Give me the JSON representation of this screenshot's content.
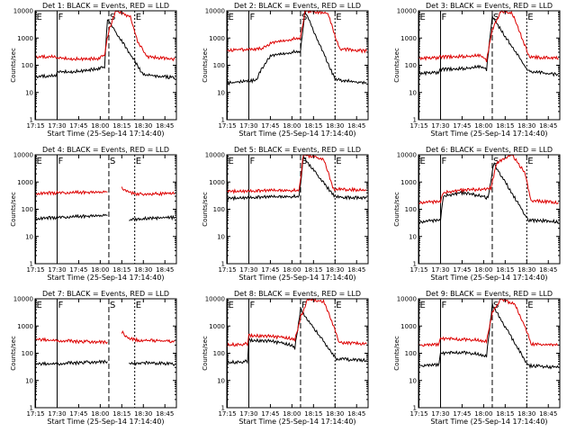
{
  "chart_data": [
    {
      "type": "line",
      "title": "Det 1: BLACK = Events, RED = LLD",
      "xlabel": "Start Time (25-Sep-14 17:14:40)",
      "ylabel": "Counts/sec",
      "yscale": "log",
      "ylim": [
        1,
        10000
      ],
      "xlim": [
        "17:14:40",
        "18:53"
      ],
      "x_ticks": [
        "17:15",
        "17:30",
        "17:45",
        "18:00",
        "18:15",
        "18:30",
        "18:45"
      ],
      "y_ticks": [
        "1",
        "10",
        "100",
        "1000",
        "10000"
      ],
      "markers": [
        {
          "label": "E",
          "x": "17:15"
        },
        {
          "label": "F",
          "x": "17:30"
        },
        {
          "label": "S",
          "x": "18:06"
        },
        {
          "label": "E",
          "x": "18:24"
        }
      ],
      "series": [
        {
          "name": "BLACK = Events",
          "color": "#000000",
          "x": [
            "17:15",
            "17:29",
            "17:30",
            "17:45",
            "17:59",
            "18:03",
            "18:05",
            "18:30",
            "18:52"
          ],
          "y": [
            38,
            42,
            55,
            60,
            75,
            85,
            5000,
            45,
            35
          ]
        },
        {
          "name": "RED = LLD",
          "color": "#dd0000",
          "x": [
            "17:15",
            "17:29",
            "17:30",
            "17:45",
            "17:59",
            "18:03",
            "18:06",
            "18:11",
            "18:21",
            "18:26",
            "18:33",
            "18:52"
          ],
          "y": [
            200,
            210,
            180,
            170,
            175,
            240,
            2000,
            10000,
            6000,
            700,
            200,
            170
          ]
        }
      ]
    },
    {
      "type": "line",
      "title": "Det 2: BLACK = Events, RED = LLD",
      "xlabel": "Start Time (25-Sep-14 17:14:40)",
      "ylabel": "Counts/sec",
      "yscale": "log",
      "ylim": [
        1,
        10000
      ],
      "xlim": [
        "17:14:40",
        "18:53"
      ],
      "x_ticks": [
        "17:15",
        "17:30",
        "17:45",
        "18:00",
        "18:15",
        "18:30",
        "18:45"
      ],
      "y_ticks": [
        "1",
        "10",
        "100",
        "1000",
        "10000"
      ],
      "markers": [
        {
          "label": "E",
          "x": "17:15"
        },
        {
          "label": "F",
          "x": "17:30"
        },
        {
          "label": "S",
          "x": "18:06"
        },
        {
          "label": "E",
          "x": "18:30"
        }
      ],
      "series": [
        {
          "name": "BLACK = Events",
          "color": "#000000",
          "x": [
            "17:15",
            "17:35",
            "17:38",
            "17:45",
            "18:00",
            "18:06",
            "18:09",
            "18:30",
            "18:52"
          ],
          "y": [
            22,
            28,
            60,
            220,
            300,
            320,
            10000,
            30,
            22
          ]
        },
        {
          "name": "RED = LLD",
          "color": "#dd0000",
          "x": [
            "17:15",
            "17:30",
            "17:40",
            "17:45",
            "18:00",
            "18:06",
            "18:09",
            "18:25",
            "18:33",
            "18:52"
          ],
          "y": [
            360,
            380,
            420,
            650,
            900,
            1000,
            10000,
            8000,
            400,
            330
          ]
        }
      ]
    },
    {
      "type": "line",
      "title": "Det 3: BLACK = Events, RED = LLD",
      "xlabel": "Start Time (25-Sep-14 17:14:40)",
      "ylabel": "Counts/sec",
      "yscale": "log",
      "ylim": [
        1,
        10000
      ],
      "xlim": [
        "17:14:40",
        "18:53"
      ],
      "x_ticks": [
        "17:15",
        "17:30",
        "17:45",
        "18:00",
        "18:15",
        "18:30",
        "18:45"
      ],
      "y_ticks": [
        "1",
        "10",
        "100",
        "1000",
        "10000"
      ],
      "markers": [
        {
          "label": "E",
          "x": "17:15"
        },
        {
          "label": "F",
          "x": "17:30"
        },
        {
          "label": "S",
          "x": "18:06"
        },
        {
          "label": "E",
          "x": "18:30"
        }
      ],
      "series": [
        {
          "name": "BLACK = Events",
          "color": "#000000",
          "x": [
            "17:15",
            "17:29",
            "17:30",
            "17:45",
            "17:58",
            "18:02",
            "18:06",
            "18:31",
            "18:52"
          ],
          "y": [
            50,
            55,
            70,
            75,
            90,
            70,
            6000,
            60,
            45
          ]
        },
        {
          "name": "RED = LLD",
          "color": "#dd0000",
          "x": [
            "17:15",
            "17:29",
            "17:30",
            "17:45",
            "17:58",
            "18:02",
            "18:06",
            "18:12",
            "18:20",
            "18:27",
            "18:32",
            "18:52"
          ],
          "y": [
            180,
            190,
            200,
            210,
            230,
            150,
            2000,
            10000,
            8000,
            900,
            200,
            180
          ]
        }
      ]
    },
    {
      "type": "line",
      "title": "Det 4: BLACK = Events, RED = LLD",
      "xlabel": "Start Time (25-Sep-14 17:14:40)",
      "ylabel": "Counts/sec",
      "yscale": "log",
      "ylim": [
        1,
        10000
      ],
      "xlim": [
        "17:14:40",
        "18:53"
      ],
      "x_ticks": [
        "17:15",
        "17:30",
        "17:45",
        "18:00",
        "18:15",
        "18:30",
        "18:45"
      ],
      "y_ticks": [
        "1",
        "10",
        "100",
        "1000",
        "10000"
      ],
      "markers": [
        {
          "label": "E",
          "x": "17:15"
        },
        {
          "label": "F",
          "x": "17:30"
        },
        {
          "label": "S",
          "x": "18:06"
        },
        {
          "label": "E",
          "x": "18:24"
        }
      ],
      "series": [
        {
          "name": "BLACK = Events",
          "color": "#000000",
          "x": [
            "17:15",
            "17:30",
            "17:45",
            "18:05"
          ],
          "y": [
            45,
            50,
            55,
            60
          ]
        },
        {
          "name": "RED = LLD",
          "color": "#dd0000",
          "x": [
            "17:15",
            "17:30",
            "17:45",
            "18:05"
          ],
          "y": [
            380,
            400,
            420,
            430
          ]
        },
        {
          "name": "BLACK = Events",
          "color": "#000000",
          "x": [
            "18:20",
            "18:30",
            "18:52"
          ],
          "y": [
            40,
            45,
            50
          ]
        },
        {
          "name": "RED = LLD",
          "color": "#dd0000",
          "x": [
            "18:15",
            "18:20",
            "18:26",
            "18:52"
          ],
          "y": [
            600,
            420,
            360,
            380
          ]
        }
      ]
    },
    {
      "type": "line",
      "title": "Det 5: BLACK = Events, RED = LLD",
      "xlabel": "Start Time (25-Sep-14 17:14:40)",
      "ylabel": "Counts/sec",
      "yscale": "log",
      "ylim": [
        1,
        10000
      ],
      "xlim": [
        "17:14:40",
        "18:53"
      ],
      "x_ticks": [
        "17:15",
        "17:30",
        "17:45",
        "18:00",
        "18:15",
        "18:30",
        "18:45"
      ],
      "y_ticks": [
        "1",
        "10",
        "100",
        "1000",
        "10000"
      ],
      "markers": [
        {
          "label": "E",
          "x": "17:15"
        },
        {
          "label": "F",
          "x": "17:30"
        },
        {
          "label": "S",
          "x": "18:06"
        },
        {
          "label": "E",
          "x": "18:30"
        }
      ],
      "series": [
        {
          "name": "BLACK = Events",
          "color": "#000000",
          "x": [
            "17:15",
            "17:30",
            "17:45",
            "18:05",
            "18:08",
            "18:30",
            "18:52"
          ],
          "y": [
            250,
            270,
            280,
            300,
            8000,
            280,
            260
          ]
        },
        {
          "name": "RED = LLD",
          "color": "#dd0000",
          "x": [
            "17:15",
            "17:30",
            "17:45",
            "18:05",
            "18:08",
            "18:22",
            "18:29",
            "18:52"
          ],
          "y": [
            450,
            470,
            480,
            500,
            10000,
            7000,
            550,
            500
          ]
        }
      ]
    },
    {
      "type": "line",
      "title": "Det 6: BLACK = Events, RED = LLD",
      "xlabel": "Start Time (25-Sep-14 17:14:40)",
      "ylabel": "Counts/sec",
      "yscale": "log",
      "ylim": [
        1,
        10000
      ],
      "xlim": [
        "17:14:40",
        "18:53"
      ],
      "x_ticks": [
        "17:15",
        "17:30",
        "17:45",
        "18:00",
        "18:15",
        "18:30",
        "18:45"
      ],
      "y_ticks": [
        "1",
        "10",
        "100",
        "1000",
        "10000"
      ],
      "markers": [
        {
          "label": "E",
          "x": "17:15"
        },
        {
          "label": "F",
          "x": "17:30"
        },
        {
          "label": "S",
          "x": "18:06"
        },
        {
          "label": "E",
          "x": "18:30"
        }
      ],
      "series": [
        {
          "name": "BLACK = Events",
          "color": "#000000",
          "x": [
            "17:15",
            "17:30",
            "17:32",
            "17:45",
            "18:00",
            "18:03",
            "18:07",
            "18:31",
            "18:52"
          ],
          "y": [
            35,
            40,
            300,
            400,
            300,
            250,
            5000,
            40,
            35
          ]
        },
        {
          "name": "RED = LLD",
          "color": "#dd0000",
          "x": [
            "17:15",
            "17:30",
            "17:32",
            "17:45",
            "18:00",
            "18:05",
            "18:09",
            "18:20",
            "18:29",
            "18:33",
            "18:52"
          ],
          "y": [
            180,
            190,
            400,
            500,
            550,
            600,
            5000,
            10000,
            2000,
            200,
            180
          ]
        }
      ]
    },
    {
      "type": "line",
      "title": "Det 7: BLACK = Events, RED = LLD",
      "xlabel": "Start Time (25-Sep-14 17:14:40)",
      "ylabel": "Counts/sec",
      "yscale": "log",
      "ylim": [
        1,
        10000
      ],
      "xlim": [
        "17:14:40",
        "18:53"
      ],
      "x_ticks": [
        "17:15",
        "17:30",
        "17:45",
        "18:00",
        "18:15",
        "18:30",
        "18:45"
      ],
      "y_ticks": [
        "1",
        "10",
        "100",
        "1000",
        "10000"
      ],
      "markers": [
        {
          "label": "E",
          "x": "17:15"
        },
        {
          "label": "F",
          "x": "17:30"
        },
        {
          "label": "S",
          "x": "18:06"
        },
        {
          "label": "E",
          "x": "18:24"
        }
      ],
      "series": [
        {
          "name": "BLACK = Events",
          "color": "#000000",
          "x": [
            "17:15",
            "17:30",
            "17:45",
            "18:05"
          ],
          "y": [
            40,
            42,
            45,
            50
          ]
        },
        {
          "name": "RED = LLD",
          "color": "#dd0000",
          "x": [
            "17:15",
            "17:30",
            "17:45",
            "18:05"
          ],
          "y": [
            320,
            300,
            270,
            260
          ]
        },
        {
          "name": "BLACK = Events",
          "color": "#000000",
          "x": [
            "18:20",
            "18:30",
            "18:52"
          ],
          "y": [
            40,
            45,
            40
          ]
        },
        {
          "name": "RED = LLD",
          "color": "#dd0000",
          "x": [
            "18:15",
            "18:20",
            "18:26",
            "18:52"
          ],
          "y": [
            600,
            350,
            300,
            280
          ]
        }
      ]
    },
    {
      "type": "line",
      "title": "Det 8: BLACK = Events, RED = LLD",
      "xlabel": "Start Time (25-Sep-14 17:14:40)",
      "ylabel": "Counts/sec",
      "yscale": "log",
      "ylim": [
        1,
        10000
      ],
      "xlim": [
        "17:14:40",
        "18:53"
      ],
      "x_ticks": [
        "17:15",
        "17:30",
        "17:45",
        "18:00",
        "18:15",
        "18:30",
        "18:45"
      ],
      "y_ticks": [
        "1",
        "10",
        "100",
        "1000",
        "10000"
      ],
      "markers": [
        {
          "label": "E",
          "x": "17:15"
        },
        {
          "label": "F",
          "x": "17:30"
        },
        {
          "label": "F",
          "x": "18:06"
        },
        {
          "label": "E",
          "x": "18:30"
        }
      ],
      "series": [
        {
          "name": "BLACK = Events",
          "color": "#000000",
          "x": [
            "17:15",
            "17:29",
            "17:30",
            "17:45",
            "18:00",
            "18:02",
            "18:06",
            "18:31",
            "18:52"
          ],
          "y": [
            45,
            50,
            300,
            280,
            200,
            150,
            4000,
            60,
            55
          ]
        },
        {
          "name": "RED = LLD",
          "color": "#dd0000",
          "x": [
            "17:15",
            "17:29",
            "17:30",
            "17:45",
            "18:00",
            "18:02",
            "18:06",
            "18:11",
            "18:22",
            "18:29",
            "18:33",
            "18:52"
          ],
          "y": [
            200,
            220,
            450,
            420,
            350,
            300,
            2000,
            10000,
            8000,
            1000,
            250,
            220
          ]
        }
      ]
    },
    {
      "type": "line",
      "title": "Det 9: BLACK = Events, RED = LLD",
      "xlabel": "Start Time (25-Sep-14 17:14:40)",
      "ylabel": "Counts/sec",
      "yscale": "log",
      "ylim": [
        1,
        10000
      ],
      "xlim": [
        "17:14:40",
        "18:53"
      ],
      "x_ticks": [
        "17:15",
        "17:30",
        "17:45",
        "18:00",
        "18:15",
        "18:30",
        "18:45"
      ],
      "y_ticks": [
        "1",
        "10",
        "100",
        "1000",
        "10000"
      ],
      "markers": [
        {
          "label": "E",
          "x": "17:15"
        },
        {
          "label": "F",
          "x": "17:30"
        },
        {
          "label": "S",
          "x": "18:06"
        },
        {
          "label": "E",
          "x": "18:30"
        }
      ],
      "series": [
        {
          "name": "BLACK = Events",
          "color": "#000000",
          "x": [
            "17:15",
            "17:29",
            "17:30",
            "17:45",
            "17:58",
            "18:02",
            "18:06",
            "18:31",
            "18:52"
          ],
          "y": [
            35,
            38,
            100,
            110,
            90,
            80,
            6000,
            35,
            30
          ]
        },
        {
          "name": "RED = LLD",
          "color": "#dd0000",
          "x": [
            "17:15",
            "17:29",
            "17:30",
            "17:45",
            "17:58",
            "18:02",
            "18:06",
            "18:12",
            "18:22",
            "18:29",
            "18:33",
            "18:52"
          ],
          "y": [
            200,
            210,
            350,
            330,
            300,
            280,
            3000,
            10000,
            6000,
            900,
            220,
            200
          ]
        }
      ]
    }
  ]
}
